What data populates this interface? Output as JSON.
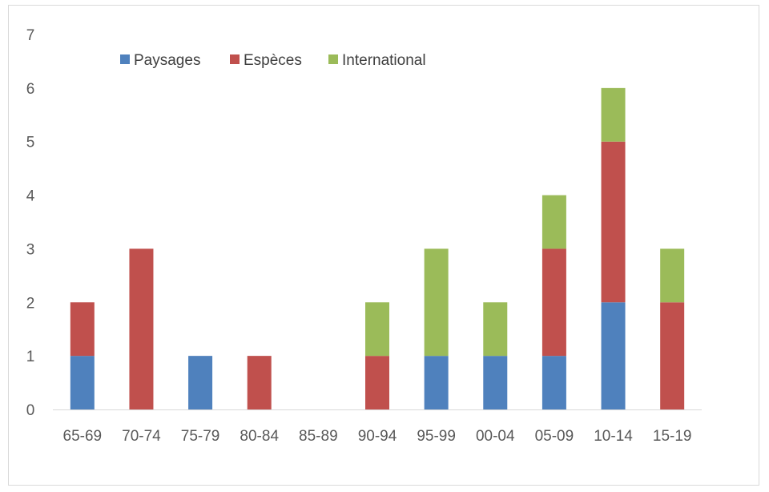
{
  "chart_data": {
    "type": "bar",
    "stacked": true,
    "categories": [
      "65-69",
      "70-74",
      "75-79",
      "80-84",
      "85-89",
      "90-94",
      "95-99",
      "00-04",
      "05-09",
      "10-14",
      "15-19"
    ],
    "series": [
      {
        "name": "Paysages",
        "color": "#4f81bd",
        "values": [
          1,
          0,
          1,
          0,
          0,
          0,
          1,
          1,
          1,
          2,
          0
        ]
      },
      {
        "name": "Espèces",
        "color": "#c0504d",
        "values": [
          1,
          3,
          0,
          1,
          0,
          1,
          0,
          0,
          2,
          3,
          2
        ]
      },
      {
        "name": "International",
        "color": "#9bbb59",
        "values": [
          0,
          0,
          0,
          0,
          0,
          1,
          2,
          1,
          1,
          1,
          1
        ]
      }
    ],
    "title": "",
    "xlabel": "",
    "ylabel": "",
    "ylim": [
      0,
      7
    ],
    "yticks": [
      "0",
      "1",
      "2",
      "3",
      "4",
      "5",
      "6",
      "7"
    ],
    "grid": false,
    "legend_position": "top-left"
  }
}
